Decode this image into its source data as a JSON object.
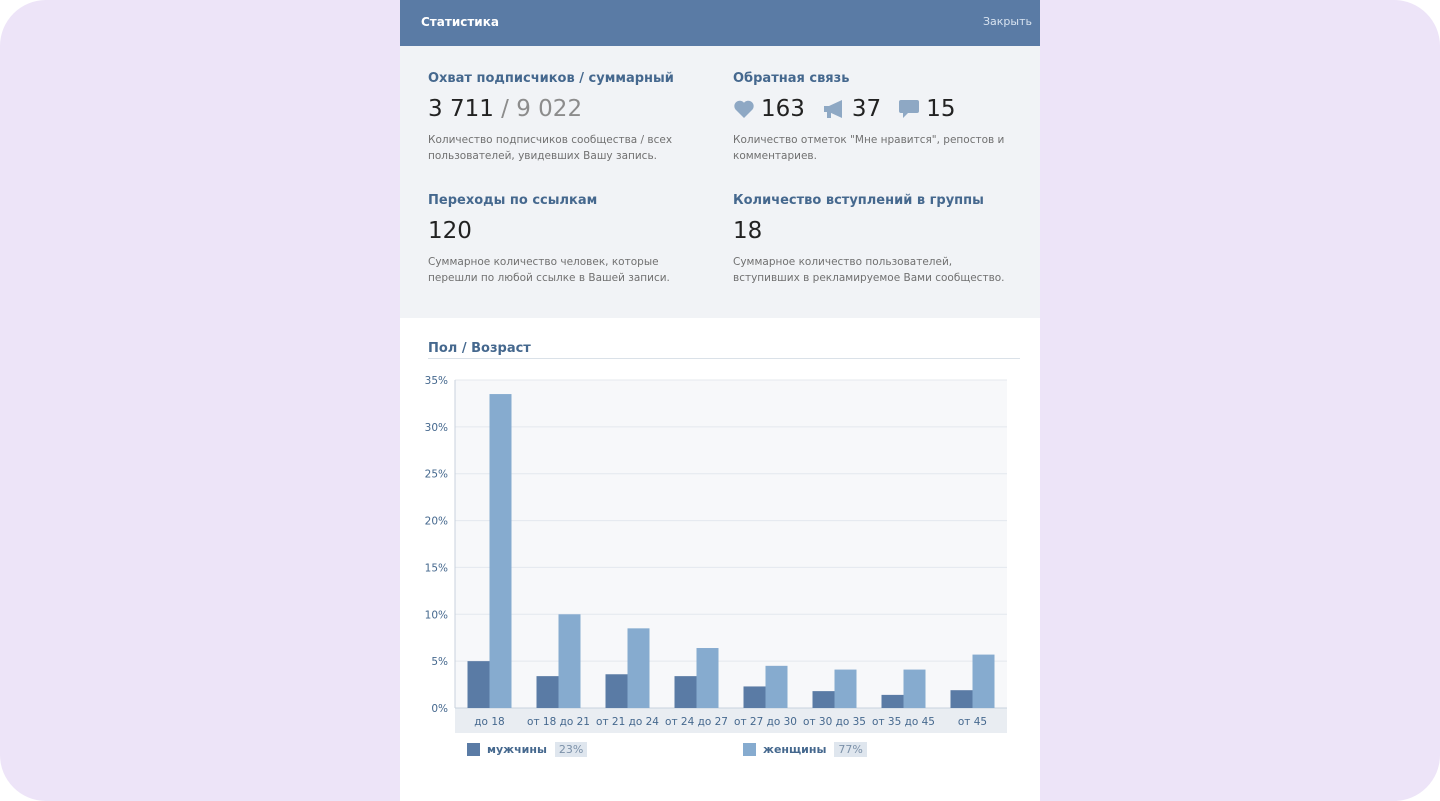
{
  "header": {
    "title": "Статистика",
    "close_label": "Закрыть"
  },
  "stats": {
    "reach": {
      "title": "Охват подписчиков / суммарный",
      "subscribers": "3 711",
      "separator": "/",
      "total": "9 022",
      "desc": "Количество подписчиков сообщества / всех пользователей, увидевших Вашу запись."
    },
    "feedback": {
      "title": "Обратная связь",
      "likes": "163",
      "reposts": "37",
      "comments": "15",
      "desc": "Количество отметок \"Мне нравится\", репостов и комментариев."
    },
    "clicks": {
      "title": "Переходы по ссылкам",
      "value": "120",
      "desc": "Суммарное количество человек, которые перешли по любой ссылке в Вашей записи."
    },
    "joins": {
      "title": "Количество вступлений в группы",
      "value": "18",
      "desc": "Суммарное количество пользователей, вступивших в рекламируемое Вами сообщество."
    }
  },
  "icons": {
    "likes": "heart-icon",
    "reposts": "megaphone-icon",
    "comments": "speech-bubble-icon"
  },
  "section": {
    "title": "Пол / Возраст"
  },
  "legend": {
    "men": {
      "label": "мужчины",
      "pct": "23%"
    },
    "women": {
      "label": "женщины",
      "pct": "77%"
    }
  },
  "colors": {
    "header": "#5a7ba5",
    "men": "#5a7ba5",
    "women": "#86abcf",
    "stats_bg": "#f1f3f6",
    "title": "#45688e"
  },
  "chart_data": {
    "type": "bar",
    "categories": [
      "до 18",
      "от 18 до 21",
      "от 21 до 24",
      "от 24 до 27",
      "от 27 до 30",
      "от 30 до 35",
      "от 35 до 45",
      "от 45"
    ],
    "series": [
      {
        "name": "мужчины",
        "values": [
          5.0,
          3.4,
          3.6,
          3.4,
          2.3,
          1.8,
          1.4,
          1.9
        ]
      },
      {
        "name": "женщины",
        "values": [
          33.5,
          10.0,
          8.5,
          6.4,
          4.5,
          4.1,
          4.1,
          5.7
        ]
      }
    ],
    "yticks": [
      "0%",
      "5%",
      "10%",
      "15%",
      "20%",
      "25%",
      "30%",
      "35%"
    ],
    "ylim": [
      0,
      35
    ],
    "grid": true,
    "legend_position": "bottom"
  }
}
